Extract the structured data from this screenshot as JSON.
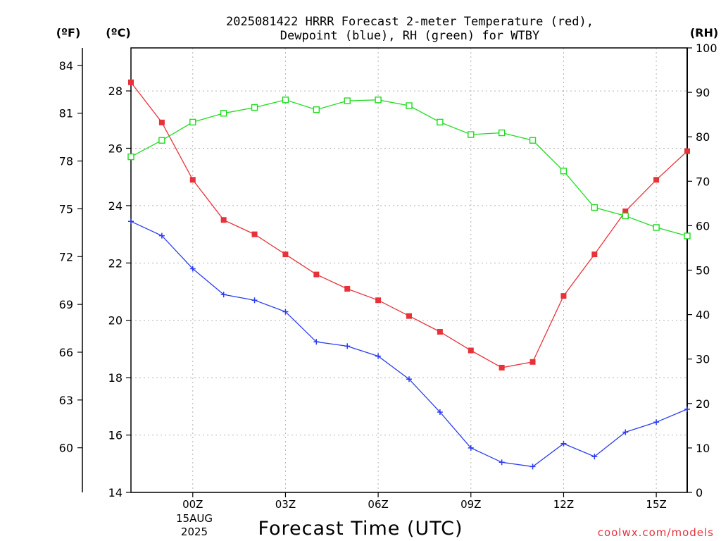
{
  "chart_data": {
    "type": "line",
    "title_lines": [
      "2025081422 HRRR Forecast 2-meter Temperature (red),",
      "Dewpoint (blue), RH (green) for WTBY"
    ],
    "xlabel": "Forecast Time (UTC)",
    "x_hours": [
      -2,
      -1,
      0,
      1,
      2,
      3,
      4,
      5,
      6,
      7,
      8,
      9,
      10,
      11,
      12,
      13,
      14,
      15,
      16
    ],
    "x_ticks": [
      {
        "hour": 0,
        "label": "00Z"
      },
      {
        "hour": 3,
        "label": "03Z"
      },
      {
        "hour": 6,
        "label": "06Z"
      },
      {
        "hour": 9,
        "label": "09Z"
      },
      {
        "hour": 12,
        "label": "12Z"
      },
      {
        "hour": 15,
        "label": "15Z"
      }
    ],
    "x_date_lines": [
      "15AUG",
      "2025"
    ],
    "x_range": [
      -2,
      16
    ],
    "y_celsius": {
      "unit_label": "(ºC)",
      "range": [
        14,
        29.5
      ],
      "ticks": [
        14,
        16,
        18,
        20,
        22,
        24,
        26,
        28
      ]
    },
    "y_fahrenheit": {
      "unit_label": "(ºF)",
      "ticks": [
        60,
        63,
        66,
        69,
        72,
        75,
        78,
        81,
        84
      ]
    },
    "y_rh": {
      "unit_label": "(RH)",
      "range": [
        0,
        100
      ],
      "ticks": [
        0,
        10,
        20,
        30,
        40,
        50,
        60,
        70,
        80,
        90,
        100
      ]
    },
    "grid": true,
    "series": [
      {
        "name": "Temperature",
        "axis": "celsius",
        "color": "#e8323a",
        "marker": "filled-square",
        "values": [
          28.3,
          26.9,
          24.9,
          23.5,
          23.0,
          22.3,
          21.6,
          21.1,
          20.7,
          20.15,
          19.6,
          18.95,
          18.35,
          18.55,
          20.85,
          22.3,
          23.8,
          24.9,
          25.9
        ]
      },
      {
        "name": "Dewpoint",
        "axis": "celsius",
        "color": "#2a3cf0",
        "marker": "plus",
        "values": [
          23.45,
          22.95,
          21.8,
          20.9,
          20.7,
          20.3,
          19.25,
          19.1,
          18.75,
          17.95,
          16.8,
          15.55,
          15.05,
          14.9,
          15.7,
          15.25,
          16.1,
          16.45,
          16.9
        ]
      },
      {
        "name": "RH",
        "axis": "rh",
        "color": "#1fdc1f",
        "marker": "open-square",
        "values": [
          75.5,
          79.2,
          83.3,
          85.3,
          86.6,
          88.3,
          86.1,
          88.1,
          88.3,
          87.0,
          83.3,
          80.5,
          80.9,
          79.2,
          72.3,
          64.1,
          62.2,
          59.6,
          57.7
        ]
      }
    ],
    "credit": "coolwx.com/models"
  }
}
